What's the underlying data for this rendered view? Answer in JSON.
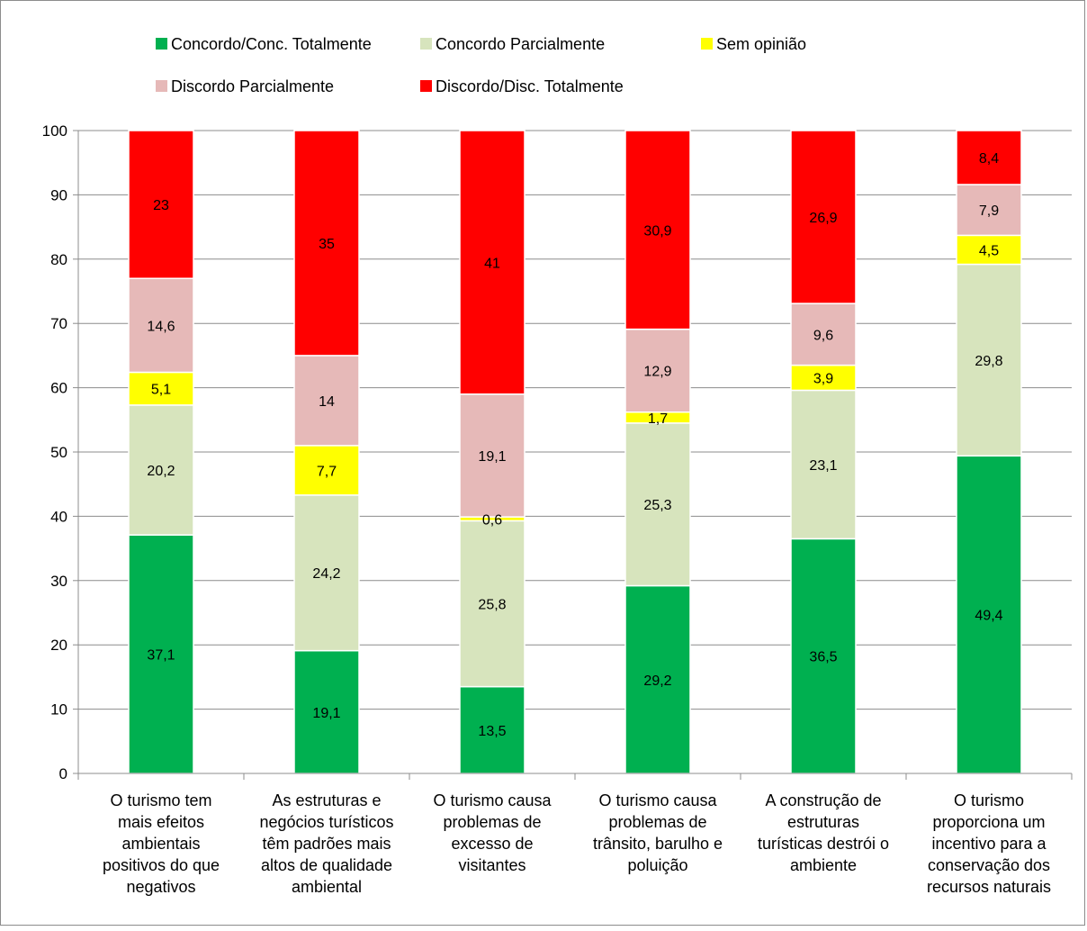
{
  "chart_data": {
    "type": "bar",
    "stacked": true,
    "categories": [
      [
        "O turismo tem",
        "mais efeitos",
        "ambientais",
        "positivos do que",
        "negativos"
      ],
      [
        "As estruturas e",
        "negócios turísticos",
        "têm padrões mais",
        "altos de qualidade",
        "ambiental"
      ],
      [
        "O turismo causa",
        "problemas de",
        "excesso de",
        "visitantes"
      ],
      [
        "O turismo causa",
        "problemas de",
        "trânsito, barulho e",
        "poluição"
      ],
      [
        "A construção de",
        "estruturas",
        "turísticas destrói o",
        "ambiente"
      ],
      [
        "O turismo",
        "proporciona um",
        "incentivo para a",
        "conservação dos",
        "recursos naturais"
      ]
    ],
    "series": [
      {
        "name": "Concordo/Conc. Totalmente",
        "color": "#00b050",
        "values": [
          37.1,
          19.1,
          13.5,
          29.2,
          36.5,
          49.4
        ],
        "labels": [
          "37,1",
          "19,1",
          "13,5",
          "29,2",
          "36,5",
          "49,4"
        ]
      },
      {
        "name": "Concordo Parcialmente",
        "color": "#d7e4bd",
        "values": [
          20.2,
          24.2,
          25.8,
          25.3,
          23.1,
          29.8
        ],
        "labels": [
          "20,2",
          "24,2",
          "25,8",
          "25,3",
          "23,1",
          "29,8"
        ]
      },
      {
        "name": "Sem opinião",
        "color": "#ffff00",
        "values": [
          5.1,
          7.7,
          0.6,
          1.7,
          3.9,
          4.5
        ],
        "labels": [
          "5,1",
          "7,7",
          "0,6",
          "1,7",
          "3,9",
          "4,5"
        ]
      },
      {
        "name": "Discordo Parcialmente",
        "color": "#e6b9b8",
        "values": [
          14.6,
          14,
          19.1,
          12.9,
          9.6,
          7.9
        ],
        "labels": [
          "14,6",
          "14",
          "19,1",
          "12,9",
          "9,6",
          "7,9"
        ]
      },
      {
        "name": "Discordo/Disc. Totalmente",
        "color": "#ff0000",
        "values": [
          23,
          35,
          41,
          30.9,
          26.9,
          8.4
        ],
        "labels": [
          "23",
          "35",
          "41",
          "30,9",
          "26,9",
          "8,4"
        ]
      }
    ],
    "ylim": [
      0,
      100
    ],
    "yticks": [
      0,
      10,
      20,
      30,
      40,
      50,
      60,
      70,
      80,
      90,
      100
    ],
    "grid": true,
    "legend_position": "top"
  }
}
